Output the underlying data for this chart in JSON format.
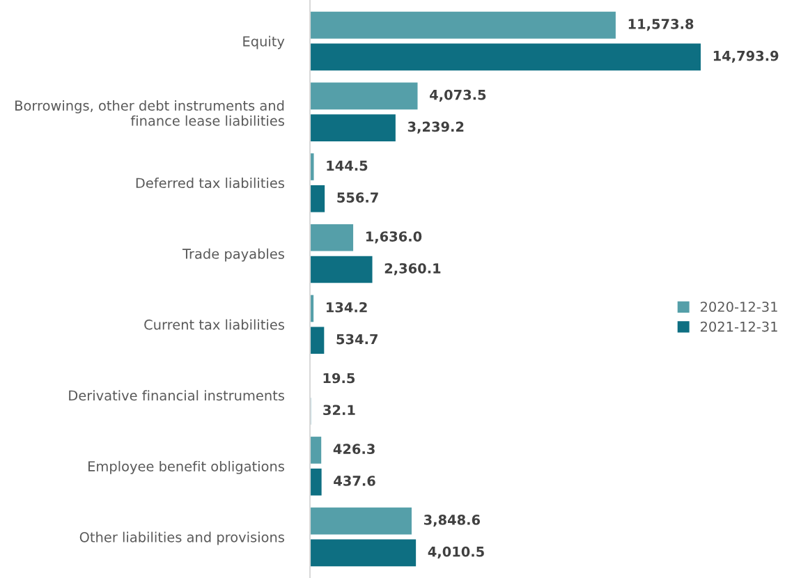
{
  "chart_data": {
    "type": "bar",
    "orientation": "horizontal",
    "categories": [
      "Equity",
      "Borrowings, other debt instruments and\nfinance lease liabilities",
      "Deferred tax liabilities",
      "Trade payables",
      "Current tax liabilities",
      "Derivative financial instruments",
      "Employee benefit obligations",
      "Other liabilities and provisions"
    ],
    "series": [
      {
        "name": "2020-12-31",
        "color": "#559fa9",
        "values": [
          11573.8,
          4073.5,
          144.5,
          1636.0,
          134.2,
          19.5,
          426.3,
          3848.6
        ],
        "value_labels": [
          "11,573.8",
          "4,073.5",
          "144.5",
          "1,636.0",
          "134.2",
          "19.5",
          "426.3",
          "3,848.6"
        ]
      },
      {
        "name": "2021-12-31",
        "color": "#0e6f82",
        "values": [
          14793.9,
          3239.2,
          556.7,
          2360.1,
          534.7,
          32.1,
          437.6,
          4010.5
        ],
        "value_labels": [
          "14,793.9",
          "3,239.2",
          "556.7",
          "2,360.1",
          "534.7",
          "32.1",
          "437.6",
          "4,010.5"
        ]
      }
    ],
    "legend": "right",
    "grid": false
  }
}
